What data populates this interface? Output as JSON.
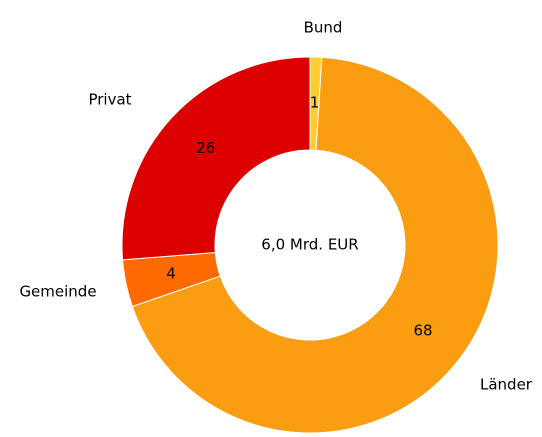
{
  "chart_data": {
    "type": "donut",
    "center_label": "6,0 Mrd. EUR",
    "categories": [
      "Bund",
      "Länder",
      "Gemeinde",
      "Privat"
    ],
    "values": [
      1,
      68,
      4,
      26
    ],
    "colors": [
      "#ffcc33",
      "#fa9d10",
      "#ff6a00",
      "#dc0000"
    ]
  }
}
